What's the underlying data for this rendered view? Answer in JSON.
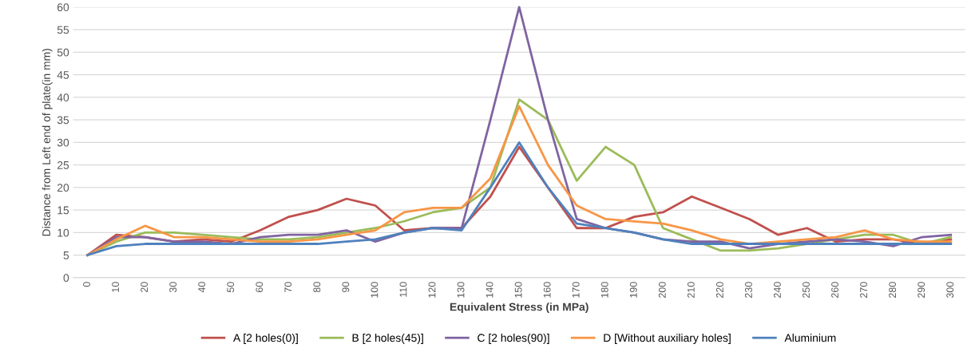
{
  "chart_data": {
    "type": "line",
    "xlabel": "Equivalent Stress (in MPa)",
    "ylabel": "Distance from Left end of plate(in mm)",
    "categories": [
      "0",
      "10",
      "20",
      "30",
      "40",
      "50",
      "60",
      "70",
      "80",
      "90",
      "100",
      "110",
      "120",
      "130",
      "140",
      "150",
      "160",
      "170",
      "180",
      "190",
      "200",
      "210",
      "220",
      "230",
      "240",
      "250",
      "260",
      "270",
      "280",
      "290",
      "300"
    ],
    "series": [
      {
        "name": "A [2 holes(0)]",
        "color": "#c0504d",
        "values": [
          5,
          9.5,
          9,
          8,
          8.5,
          8,
          10.5,
          13.5,
          15,
          17.5,
          16,
          10.5,
          11,
          11,
          18,
          29,
          20,
          11,
          11,
          13.5,
          14.5,
          18,
          15.5,
          13,
          9.5,
          11,
          8,
          8.5,
          8.5,
          7.5,
          8.5
        ]
      },
      {
        "name": "B [2 holes(45)]",
        "color": "#9bbb59",
        "values": [
          5,
          8,
          10,
          10,
          9.5,
          9,
          8.5,
          8.5,
          9,
          10,
          11,
          12.5,
          14.5,
          15.5,
          20,
          39.5,
          35,
          21.5,
          29,
          25,
          11,
          8.5,
          6,
          6,
          6.5,
          7.5,
          8.5,
          9.5,
          9.5,
          7.5,
          9
        ]
      },
      {
        "name": "C [2 holes(90)]",
        "color": "#8064a2",
        "values": [
          5,
          9,
          9,
          8,
          8,
          7.5,
          9,
          9.5,
          9.5,
          10.5,
          8,
          10,
          11,
          11,
          35,
          60,
          35,
          13,
          11,
          10,
          8.5,
          8,
          8,
          6.5,
          7.5,
          8,
          8.5,
          8,
          7,
          9,
          9.5
        ]
      },
      {
        "name": "D [Without auxiliary holes]",
        "color": "#f79646",
        "values": [
          5,
          8.5,
          11.5,
          9,
          9,
          8.5,
          8,
          8,
          8.5,
          9.5,
          10.5,
          14.5,
          15.5,
          15.5,
          22,
          38,
          25,
          16,
          13,
          12.5,
          12,
          10.5,
          8.5,
          7.5,
          8,
          8.5,
          9,
          10.5,
          8.5,
          8,
          8
        ]
      },
      {
        "name": "Aluminium",
        "color": "#4f81bd",
        "values": [
          5,
          7,
          7.5,
          7.5,
          7.5,
          7.5,
          7.5,
          7.5,
          7.5,
          8,
          8.5,
          10,
          11,
          10.5,
          20,
          30,
          20,
          12,
          11,
          10,
          8.5,
          7.5,
          7.5,
          7.5,
          7.5,
          7.5,
          7.5,
          7.5,
          7.5,
          7.5,
          7.5
        ]
      }
    ],
    "ylim": [
      0,
      60
    ],
    "yticks": [
      0,
      5,
      10,
      15,
      20,
      25,
      30,
      35,
      40,
      45,
      50,
      55,
      60
    ],
    "grid": "y",
    "legend": "bottom",
    "marker": "none",
    "line_style": "solid"
  }
}
